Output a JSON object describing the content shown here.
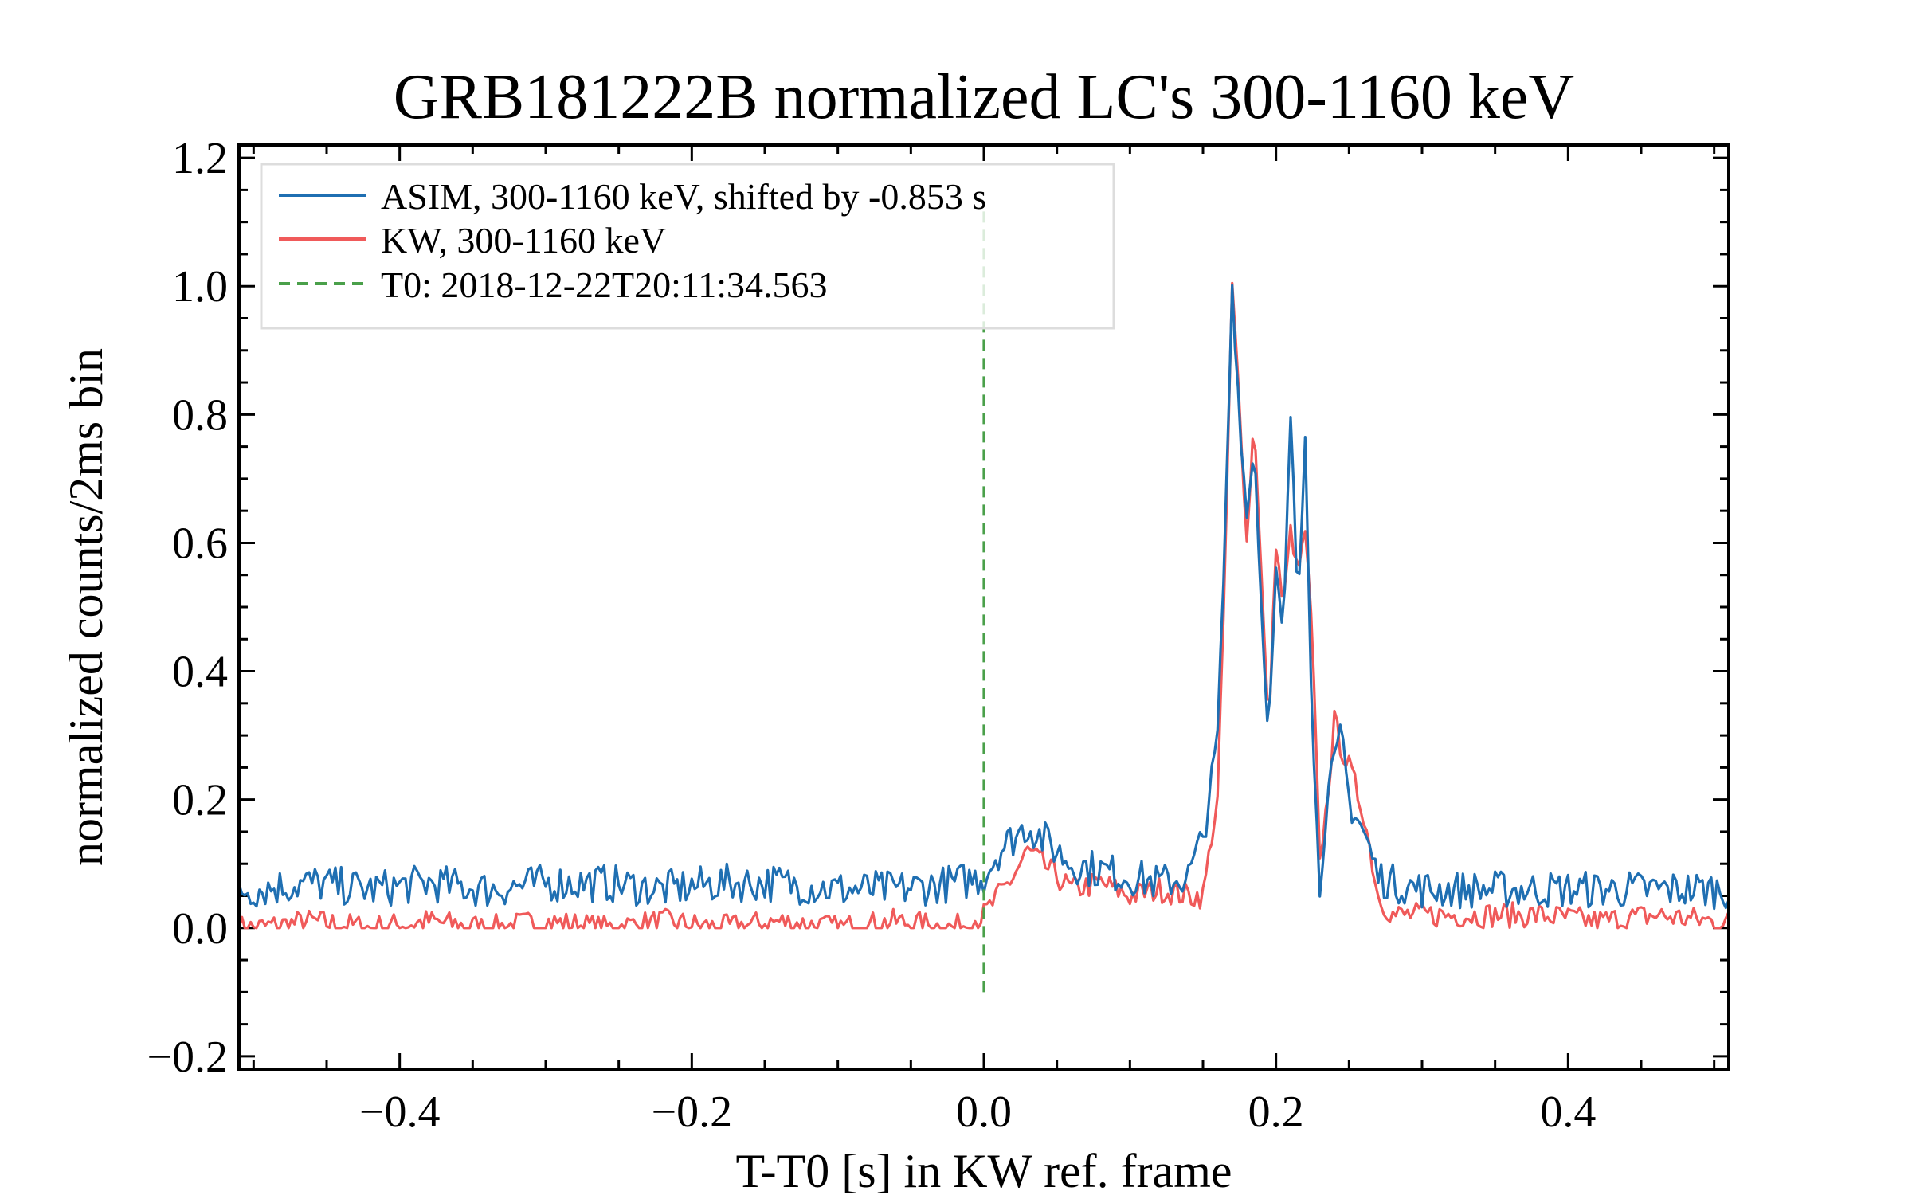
{
  "chart_data": {
    "type": "line",
    "title": "GRB181222B normalized LC's 300-1160 keV",
    "xlabel": "T-T0 [s] in KW ref. frame",
    "ylabel": "normalized counts/2ms bin",
    "xlim": [
      -0.51,
      0.51
    ],
    "ylim": [
      -0.22,
      1.22
    ],
    "xticks": [
      -0.4,
      -0.2,
      0.0,
      0.2,
      0.4
    ],
    "xtick_labels": [
      "−0.4",
      "−0.2",
      "0.0",
      "0.2",
      "0.4"
    ],
    "yticks": [
      -0.2,
      0.0,
      0.2,
      0.4,
      0.6,
      0.8,
      1.0,
      1.2
    ],
    "ytick_labels": [
      "−0.2",
      "0.0",
      "0.2",
      "0.4",
      "0.6",
      "0.8",
      "1.0",
      "1.2"
    ],
    "grid": false,
    "legend_position": "top-left",
    "series": [
      {
        "name": "ASIM, 300-1160 keV, shifted by -0.853 s",
        "color": "#1f6fb2",
        "x": [
          -0.5,
          -0.46,
          -0.42,
          -0.38,
          -0.34,
          -0.3,
          -0.26,
          -0.22,
          -0.18,
          -0.14,
          -0.1,
          -0.06,
          -0.02,
          0.0,
          0.01,
          0.02,
          0.03,
          0.04,
          0.05,
          0.06,
          0.08,
          0.1,
          0.12,
          0.14,
          0.15,
          0.16,
          0.165,
          0.17,
          0.175,
          0.18,
          0.185,
          0.19,
          0.195,
          0.2,
          0.205,
          0.21,
          0.215,
          0.22,
          0.225,
          0.23,
          0.235,
          0.24,
          0.245,
          0.25,
          0.26,
          0.27,
          0.28,
          0.3,
          0.34,
          0.38,
          0.42,
          0.46,
          0.5
        ],
        "y": [
          0.06,
          0.07,
          0.06,
          0.07,
          0.06,
          0.07,
          0.07,
          0.06,
          0.07,
          0.07,
          0.06,
          0.06,
          0.07,
          0.08,
          0.12,
          0.14,
          0.16,
          0.14,
          0.12,
          0.1,
          0.09,
          0.08,
          0.07,
          0.08,
          0.14,
          0.3,
          0.6,
          1.0,
          0.8,
          0.64,
          0.76,
          0.5,
          0.3,
          0.55,
          0.45,
          0.8,
          0.5,
          0.78,
          0.3,
          0.06,
          0.2,
          0.25,
          0.3,
          0.2,
          0.15,
          0.08,
          0.07,
          0.06,
          0.06,
          0.06,
          0.06,
          0.06,
          0.06
        ]
      },
      {
        "name": "KW, 300-1160 keV",
        "color": "#f05a5a",
        "x": [
          -0.5,
          -0.46,
          -0.42,
          -0.38,
          -0.34,
          -0.3,
          -0.26,
          -0.22,
          -0.18,
          -0.14,
          -0.1,
          -0.06,
          -0.02,
          0.0,
          0.01,
          0.02,
          0.03,
          0.04,
          0.05,
          0.06,
          0.08,
          0.1,
          0.12,
          0.14,
          0.15,
          0.16,
          0.165,
          0.17,
          0.175,
          0.18,
          0.185,
          0.19,
          0.195,
          0.2,
          0.205,
          0.21,
          0.215,
          0.22,
          0.225,
          0.23,
          0.235,
          0.24,
          0.245,
          0.25,
          0.26,
          0.27,
          0.28,
          0.3,
          0.34,
          0.38,
          0.42,
          0.46,
          0.5
        ],
        "y": [
          0.0,
          0.01,
          0.0,
          0.01,
          0.0,
          0.01,
          0.0,
          0.01,
          0.0,
          0.01,
          0.0,
          0.01,
          0.0,
          0.02,
          0.05,
          0.08,
          0.12,
          0.1,
          0.08,
          0.06,
          0.07,
          0.05,
          0.06,
          0.05,
          0.05,
          0.2,
          0.55,
          1.0,
          0.82,
          0.6,
          0.8,
          0.55,
          0.3,
          0.6,
          0.5,
          0.62,
          0.55,
          0.62,
          0.45,
          0.1,
          0.2,
          0.32,
          0.28,
          0.25,
          0.18,
          0.05,
          0.02,
          0.02,
          0.02,
          0.02,
          0.01,
          0.02,
          0.01
        ]
      },
      {
        "name": "T0: 2018-12-22T20:11:34.563",
        "color": "#4aa04a",
        "style": "dashed",
        "x": [
          0.0,
          0.0
        ],
        "y": [
          -0.1,
          1.12
        ]
      }
    ]
  }
}
